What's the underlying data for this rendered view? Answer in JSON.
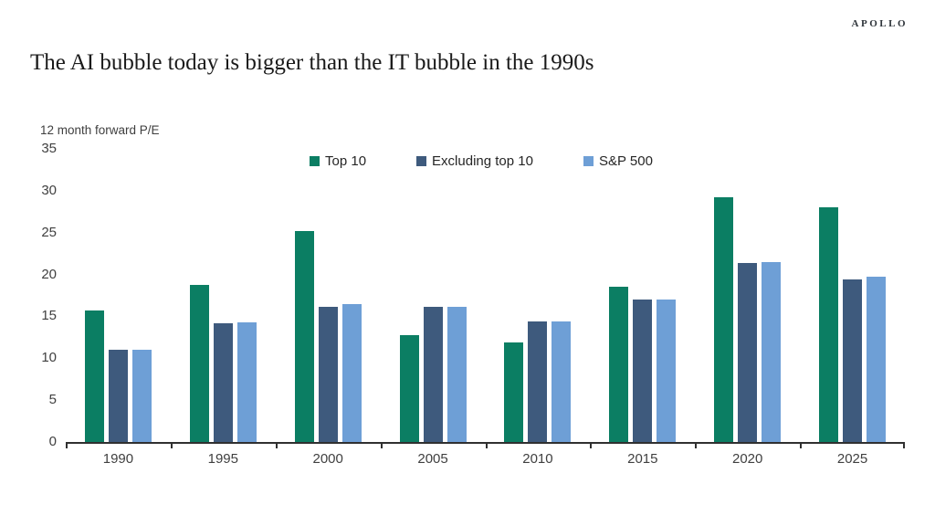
{
  "page": {
    "brand": "APOLLO",
    "title": "The AI bubble today is bigger than the IT bubble in the 1990s"
  },
  "chart_data": {
    "type": "bar",
    "title": "The AI bubble today is bigger than the IT bubble in the 1990s",
    "ylabel": "12 month forward P/E",
    "xlabel": "",
    "ylim": [
      0,
      35
    ],
    "yticks": [
      0,
      5,
      10,
      15,
      20,
      25,
      30,
      35
    ],
    "grid": false,
    "legend_position": "top",
    "categories": [
      "1990",
      "1995",
      "2000",
      "2005",
      "2010",
      "2015",
      "2020",
      "2025"
    ],
    "series": [
      {
        "name": "Top 10",
        "color": "#0B7E63",
        "values": [
          15.7,
          18.8,
          25.2,
          12.8,
          11.9,
          18.5,
          29.2,
          28.0
        ]
      },
      {
        "name": "Excluding top 10",
        "color": "#3E5A7D",
        "values": [
          11.0,
          14.2,
          16.1,
          16.1,
          14.4,
          17.0,
          21.4,
          19.4
        ]
      },
      {
        "name": "S&P 500",
        "color": "#6E9FD6",
        "values": [
          11.0,
          14.3,
          16.5,
          16.1,
          14.4,
          17.0,
          21.5,
          19.7
        ]
      }
    ],
    "colors": {
      "axis": "#303030",
      "tick_text": "#404040"
    }
  }
}
